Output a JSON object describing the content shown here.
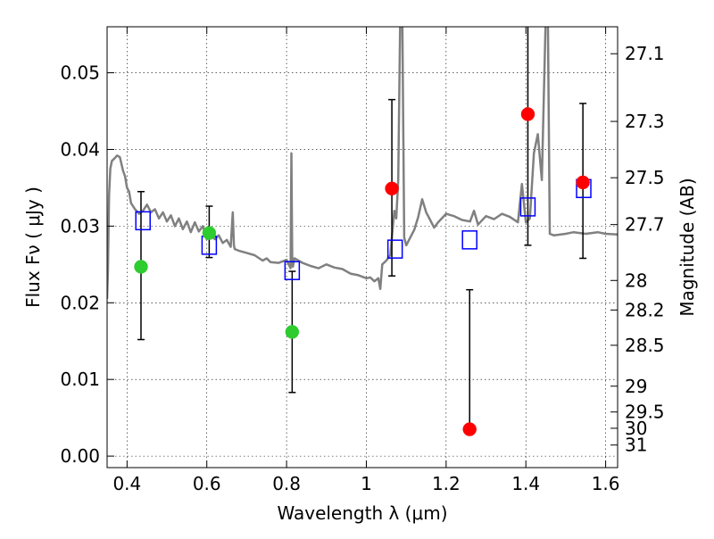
{
  "chart_data": {
    "type": "scatter",
    "xlabel": "Wavelength  λ (μm)",
    "ylabel": "Flux  Fν  ( μJy )",
    "ylabel_right": "Magnitude (AB)",
    "xlim": [
      0.35,
      1.63
    ],
    "ylim": [
      -0.0015,
      0.056
    ],
    "grid": true,
    "x_ticks": [
      "0.4",
      "0.6",
      "0.8",
      "1",
      "1.2",
      "1.4",
      "1.6"
    ],
    "x_tick_values": [
      0.4,
      0.6,
      0.8,
      1.0,
      1.2,
      1.4,
      1.6
    ],
    "y_ticks": [
      "0.00",
      "0.01",
      "0.02",
      "0.03",
      "0.04",
      "0.05"
    ],
    "y_tick_values": [
      0.0,
      0.01,
      0.02,
      0.03,
      0.04,
      0.05
    ],
    "right_ticks": [
      "27.1",
      "27.3",
      "27.5",
      "27.7",
      "28",
      "28.2",
      "28.5",
      "29",
      "29.5",
      "30",
      "31"
    ],
    "right_tick_values": [
      27.1,
      27.3,
      27.5,
      27.7,
      28.0,
      28.2,
      28.5,
      29.0,
      29.5,
      30.0,
      31.0
    ],
    "colors": {
      "detection_points": "#2ecc2e",
      "measured_points": "#ff0000",
      "model_squares": "#0000ff",
      "spectrum": "#808080",
      "errorbars": "#000000"
    },
    "measured_points": [
      {
        "x": 0.435,
        "y": 0.0247,
        "yerr_low": 0.0095,
        "yerr_high": 0.0098,
        "marker": "green"
      },
      {
        "x": 0.606,
        "y": 0.0291,
        "yerr_low": 0.0032,
        "yerr_high": 0.0035,
        "marker": "green"
      },
      {
        "x": 0.814,
        "y": 0.0162,
        "yerr_low": 0.0079,
        "yerr_high": 0.0079,
        "marker": "green"
      },
      {
        "x": 1.064,
        "y": 0.0349,
        "yerr_low": 0.0114,
        "yerr_high": 0.0116,
        "marker": "red"
      },
      {
        "x": 1.259,
        "y": 0.0035,
        "yerr_low": 0.0,
        "yerr_high": 0.0182,
        "marker": "red"
      },
      {
        "x": 1.405,
        "y": 0.0446,
        "yerr_low": 0.0171,
        "yerr_high": 0.0132,
        "marker": "red"
      },
      {
        "x": 1.543,
        "y": 0.0357,
        "yerr_low": 0.0099,
        "yerr_high": 0.0103,
        "marker": "red"
      }
    ],
    "model_points": [
      {
        "x": 0.44,
        "y": 0.0307
      },
      {
        "x": 0.606,
        "y": 0.0275
      },
      {
        "x": 0.814,
        "y": 0.0242
      },
      {
        "x": 1.072,
        "y": 0.027
      },
      {
        "x": 1.259,
        "y": 0.0282
      },
      {
        "x": 1.405,
        "y": 0.0325
      },
      {
        "x": 1.545,
        "y": 0.0349
      }
    ],
    "spectrum": {
      "x": [
        0.35,
        0.352,
        0.355,
        0.358,
        0.362,
        0.368,
        0.375,
        0.382,
        0.39,
        0.395,
        0.4,
        0.405,
        0.41,
        0.42,
        0.43,
        0.44,
        0.45,
        0.46,
        0.47,
        0.48,
        0.49,
        0.5,
        0.51,
        0.52,
        0.53,
        0.54,
        0.55,
        0.56,
        0.57,
        0.58,
        0.59,
        0.6,
        0.61,
        0.62,
        0.63,
        0.64,
        0.65,
        0.66,
        0.665,
        0.668,
        0.67,
        0.68,
        0.7,
        0.72,
        0.74,
        0.75,
        0.76,
        0.78,
        0.8,
        0.81,
        0.812,
        0.814,
        0.816,
        0.82,
        0.84,
        0.86,
        0.88,
        0.9,
        0.92,
        0.94,
        0.96,
        0.98,
        1.0,
        1.01,
        1.02,
        1.03,
        1.035,
        1.04,
        1.05,
        1.06,
        1.07,
        1.075,
        1.08,
        1.085,
        1.09,
        1.095,
        1.1,
        1.105,
        1.11,
        1.12,
        1.13,
        1.14,
        1.15,
        1.16,
        1.17,
        1.18,
        1.2,
        1.22,
        1.24,
        1.26,
        1.27,
        1.28,
        1.3,
        1.32,
        1.34,
        1.36,
        1.38,
        1.39,
        1.4,
        1.41,
        1.42,
        1.43,
        1.44,
        1.45,
        1.455,
        1.46,
        1.47,
        1.5,
        1.52,
        1.55,
        1.58,
        1.6,
        1.63
      ],
      "y": [
        0.0205,
        0.024,
        0.034,
        0.0375,
        0.0385,
        0.0388,
        0.0392,
        0.039,
        0.0372,
        0.0365,
        0.035,
        0.0345,
        0.033,
        0.0322,
        0.0316,
        0.032,
        0.0328,
        0.0318,
        0.0322,
        0.031,
        0.0318,
        0.0306,
        0.0314,
        0.03,
        0.031,
        0.0296,
        0.0306,
        0.0292,
        0.0305,
        0.0293,
        0.03,
        0.0283,
        0.0288,
        0.0283,
        0.0288,
        0.0278,
        0.0282,
        0.0273,
        0.0318,
        0.0275,
        0.027,
        0.0268,
        0.0265,
        0.0262,
        0.0255,
        0.0258,
        0.0253,
        0.0252,
        0.0256,
        0.0245,
        0.0395,
        0.026,
        0.0247,
        0.0258,
        0.0252,
        0.0248,
        0.0245,
        0.025,
        0.0246,
        0.0244,
        0.0238,
        0.0236,
        0.0232,
        0.0233,
        0.0228,
        0.0232,
        0.0218,
        0.025,
        0.0255,
        0.0262,
        0.032,
        0.031,
        0.036,
        0.058,
        0.058,
        0.0285,
        0.0275,
        0.028,
        0.0285,
        0.0295,
        0.0312,
        0.0335,
        0.0318,
        0.0308,
        0.0298,
        0.0305,
        0.0316,
        0.0313,
        0.0308,
        0.0306,
        0.032,
        0.0302,
        0.0313,
        0.0309,
        0.0316,
        0.0312,
        0.0305,
        0.0355,
        0.0305,
        0.031,
        0.0395,
        0.042,
        0.036,
        0.058,
        0.058,
        0.029,
        0.0288,
        0.029,
        0.0292,
        0.029,
        0.0292,
        0.029,
        0.0289
      ]
    }
  }
}
